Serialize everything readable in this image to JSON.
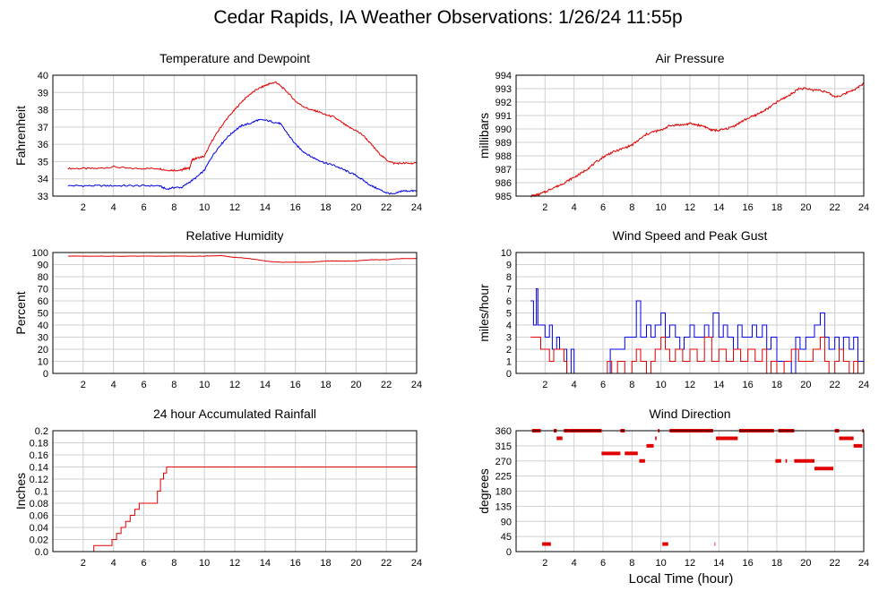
{
  "title": "Cedar Rapids, IA Weather Observations: 1/26/24 11:55p",
  "xlabel": "Local Time (hour)",
  "colors": {
    "red": "#e00000",
    "blue": "#0000e0"
  },
  "chart_data": [
    {
      "id": "temp",
      "type": "line",
      "title": "Temperature and Dewpoint",
      "ylabel": "Fahrenheit",
      "xlim": [
        0,
        24
      ],
      "ylim": [
        33,
        40
      ],
      "xticks": [
        2,
        4,
        6,
        8,
        10,
        12,
        14,
        16,
        18,
        20,
        22,
        24
      ],
      "yticks": [
        33,
        34,
        35,
        36,
        37,
        38,
        39,
        40
      ],
      "grid": true,
      "series": [
        {
          "color": "#e00000",
          "jitter": 0.05,
          "x": [
            1,
            2,
            3,
            4,
            5,
            6,
            7,
            7.5,
            8,
            8.5,
            8.7,
            9,
            9.2,
            9.5,
            10,
            10.5,
            11,
            11.5,
            12,
            12.5,
            13,
            13.5,
            14,
            14.3,
            14.7,
            15,
            15.5,
            16,
            16.5,
            17,
            17.5,
            18,
            18.5,
            19,
            19.5,
            20,
            20.5,
            21,
            21.5,
            22,
            22.5,
            23,
            23.5,
            24
          ],
          "y": [
            34.6,
            34.6,
            34.6,
            34.7,
            34.6,
            34.6,
            34.6,
            34.5,
            34.5,
            34.5,
            34.6,
            34.6,
            35.1,
            35.2,
            35.3,
            36.2,
            36.9,
            37.5,
            38.0,
            38.5,
            38.9,
            39.2,
            39.4,
            39.5,
            39.6,
            39.4,
            39.0,
            38.5,
            38.2,
            38.0,
            37.9,
            37.7,
            37.6,
            37.3,
            37.0,
            36.8,
            36.5,
            36.0,
            35.5,
            35.1,
            34.9,
            34.9,
            34.9,
            34.9
          ]
        },
        {
          "color": "#0000e0",
          "jitter": 0.05,
          "x": [
            1,
            2,
            3,
            4,
            5,
            6,
            7,
            7.5,
            8,
            8.5,
            9,
            9.5,
            10,
            10.5,
            11,
            11.5,
            12,
            12.5,
            13,
            13.5,
            14,
            14.5,
            15,
            15.5,
            16,
            16.5,
            17,
            17.5,
            18,
            18.5,
            19,
            19.5,
            20,
            20.5,
            21,
            21.5,
            22,
            22.5,
            23,
            23.5,
            24
          ],
          "y": [
            33.6,
            33.6,
            33.6,
            33.6,
            33.6,
            33.6,
            33.6,
            33.4,
            33.5,
            33.5,
            33.8,
            34.1,
            34.5,
            35.3,
            35.9,
            36.4,
            36.8,
            37.1,
            37.2,
            37.4,
            37.4,
            37.3,
            37.2,
            36.6,
            36.0,
            35.6,
            35.3,
            35.1,
            34.9,
            34.8,
            34.6,
            34.4,
            34.2,
            33.9,
            33.6,
            33.4,
            33.2,
            33.1,
            33.3,
            33.3,
            33.3
          ]
        }
      ]
    },
    {
      "id": "pressure",
      "type": "line",
      "title": "Air Pressure",
      "ylabel": "millibars",
      "xlim": [
        0,
        24
      ],
      "ylim": [
        985,
        994
      ],
      "xticks": [
        2,
        4,
        6,
        8,
        10,
        12,
        14,
        16,
        18,
        20,
        22,
        24
      ],
      "yticks": [
        985,
        986,
        987,
        988,
        989,
        990,
        991,
        992,
        993,
        994
      ],
      "grid": true,
      "series": [
        {
          "color": "#e00000",
          "jitter": 0.08,
          "x": [
            1,
            1.5,
            2,
            2.5,
            3,
            3.5,
            4,
            4.5,
            5,
            5.5,
            6,
            6.5,
            7,
            7.5,
            8,
            8.5,
            9,
            9.5,
            10,
            10.5,
            11,
            11.5,
            12,
            12.5,
            13,
            13.5,
            14,
            14.5,
            15,
            15.5,
            16,
            16.5,
            17,
            17.5,
            18,
            18.5,
            19,
            19.5,
            20,
            20.5,
            21,
            21.5,
            22,
            22.5,
            23,
            23.5,
            24
          ],
          "y": [
            985.0,
            985.1,
            985.3,
            985.6,
            985.8,
            986.1,
            986.4,
            986.7,
            987.1,
            987.5,
            987.9,
            988.2,
            988.4,
            988.6,
            988.8,
            989.2,
            989.6,
            989.8,
            989.9,
            990.2,
            990.3,
            990.3,
            990.4,
            990.3,
            990.2,
            989.9,
            989.9,
            990.0,
            990.2,
            990.5,
            990.8,
            991.0,
            991.3,
            991.6,
            992.0,
            992.3,
            992.6,
            993.0,
            993.0,
            992.9,
            992.9,
            992.7,
            992.4,
            992.5,
            992.8,
            993.0,
            993.4
          ]
        }
      ]
    },
    {
      "id": "rh",
      "type": "line",
      "title": "Relative Humidity",
      "ylabel": "Percent",
      "xlim": [
        0,
        24
      ],
      "ylim": [
        0,
        100
      ],
      "xticks": [
        2,
        4,
        6,
        8,
        10,
        12,
        14,
        16,
        18,
        20,
        22,
        24
      ],
      "yticks": [
        0,
        10,
        20,
        30,
        40,
        50,
        60,
        70,
        80,
        90,
        100
      ],
      "grid": true,
      "series": [
        {
          "color": "#e00000",
          "jitter": 0.15,
          "x": [
            1,
            3,
            5,
            7,
            9,
            10,
            11,
            12,
            13,
            14,
            15,
            16,
            17,
            18,
            19,
            20,
            21,
            22,
            23,
            24
          ],
          "y": [
            97,
            97,
            97,
            97,
            97,
            97,
            97.5,
            96,
            95,
            93,
            92,
            92,
            92,
            93,
            93,
            93,
            94,
            94,
            95,
            95
          ]
        }
      ]
    },
    {
      "id": "wind",
      "type": "line",
      "title": "Wind Speed and Peak Gust",
      "ylabel": "miles/hour",
      "xlim": [
        0,
        24
      ],
      "ylim": [
        0,
        10
      ],
      "xticks": [
        2,
        4,
        6,
        8,
        10,
        12,
        14,
        16,
        18,
        20,
        22,
        24
      ],
      "yticks": [
        0,
        1,
        2,
        3,
        4,
        5,
        6,
        7,
        8,
        9,
        10
      ],
      "grid": true,
      "series": [
        {
          "color": "#0000e0",
          "step": true,
          "x": [
            1,
            1.2,
            1.4,
            1.5,
            1.7,
            2,
            2.3,
            2.5,
            2.8,
            3,
            3.3,
            3.5,
            3.8,
            4,
            4.5,
            5,
            5.5,
            6,
            6.5,
            7,
            7.5,
            8,
            8.3,
            8.6,
            9,
            9.3,
            9.6,
            10,
            10.3,
            10.6,
            11,
            11.3,
            11.6,
            12,
            12.3,
            12.6,
            13,
            13.3,
            13.6,
            14,
            14.3,
            14.6,
            15,
            15.3,
            15.6,
            16,
            16.3,
            16.6,
            17,
            17.3,
            17.6,
            18,
            18.5,
            19,
            19.3,
            19.6,
            20,
            20.3,
            20.6,
            21,
            21.3,
            21.6,
            22,
            22.3,
            22.6,
            23,
            23.3,
            23.6,
            24
          ],
          "y": [
            6,
            4,
            7,
            4,
            4,
            3,
            4,
            2,
            3,
            2,
            2,
            0,
            2,
            0,
            0,
            0,
            0,
            0,
            2,
            2,
            3,
            3,
            6,
            3,
            4,
            3,
            4,
            5,
            3,
            4,
            3,
            2,
            3,
            4,
            3,
            3,
            4,
            3,
            5,
            3,
            4,
            3,
            2,
            4,
            3,
            3,
            4,
            3,
            4,
            2,
            3,
            1,
            1,
            0,
            3,
            2,
            3,
            3,
            4,
            5,
            3,
            2,
            3,
            2,
            3,
            2,
            3,
            1,
            2
          ]
        },
        {
          "color": "#e00000",
          "step": true,
          "x": [
            1,
            1.5,
            1.7,
            2,
            2.3,
            2.6,
            3,
            3.3,
            3.5,
            4,
            4.5,
            5,
            5.5,
            6,
            6.3,
            6.6,
            7,
            7.5,
            8,
            8.3,
            8.6,
            9,
            9.3,
            9.6,
            10,
            10.3,
            10.6,
            11,
            11.5,
            12,
            12.5,
            13,
            13.5,
            14,
            14.5,
            15,
            15.5,
            16,
            16.5,
            17,
            17.3,
            17.6,
            18,
            18.5,
            19,
            19.5,
            20,
            20.5,
            21,
            21.3,
            21.6,
            22,
            22.3,
            22.6,
            23,
            23.3,
            23.6,
            24
          ],
          "y": [
            3,
            3,
            2,
            2,
            1,
            2,
            2,
            1,
            0,
            0,
            0,
            0,
            0,
            0,
            1,
            0,
            1,
            0,
            1,
            2,
            1,
            0,
            1,
            2,
            3,
            2,
            1,
            2,
            1,
            2,
            1,
            3,
            1,
            2,
            1,
            2,
            1,
            2,
            1,
            2,
            0,
            1,
            0,
            1,
            2,
            1,
            1,
            2,
            3,
            1,
            0,
            1,
            2,
            1,
            0,
            1,
            0,
            1
          ]
        }
      ]
    },
    {
      "id": "rain",
      "type": "line",
      "title": "24 hour Accumulated Rainfall",
      "ylabel": "Inches",
      "xlim": [
        0,
        24
      ],
      "ylim": [
        0,
        0.2
      ],
      "xticks": [
        2,
        4,
        6,
        8,
        10,
        12,
        14,
        16,
        18,
        20,
        22,
        24
      ],
      "yticks": [
        0,
        0.02,
        0.04,
        0.06,
        0.08,
        0.1,
        0.12,
        0.14,
        0.16,
        0.18,
        0.2
      ],
      "ydecimals": 2,
      "grid": true,
      "series": [
        {
          "color": "#e00000",
          "step": true,
          "x": [
            1,
            2.7,
            3.9,
            4.2,
            4.5,
            4.8,
            5.1,
            5.4,
            5.7,
            5.9,
            6.9,
            7.1,
            7.3,
            7.5,
            7.7,
            24
          ],
          "y": [
            0,
            0.01,
            0.02,
            0.03,
            0.04,
            0.05,
            0.06,
            0.07,
            0.08,
            0.08,
            0.1,
            0.12,
            0.13,
            0.14,
            0.14,
            0.14
          ]
        }
      ]
    },
    {
      "id": "winddir",
      "type": "scatter",
      "title": "Wind Direction",
      "ylabel": "degrees",
      "xlim": [
        0,
        24
      ],
      "ylim": [
        0,
        360
      ],
      "xticks": [
        2,
        4,
        6,
        8,
        10,
        12,
        14,
        16,
        18,
        20,
        22,
        24
      ],
      "yticks": [
        0,
        45,
        90,
        135,
        180,
        225,
        270,
        315,
        360
      ],
      "grid": true,
      "segments": [
        {
          "y": 360,
          "x0": 1.1,
          "x1": 1.7
        },
        {
          "y": 22.5,
          "x0": 1.8,
          "x1": 2.4
        },
        {
          "y": 360,
          "x0": 2.6,
          "x1": 2.8
        },
        {
          "y": 337.5,
          "x0": 2.8,
          "x1": 3.2
        },
        {
          "y": 360,
          "x0": 3.3,
          "x1": 5.9
        },
        {
          "y": 292.5,
          "x0": 5.9,
          "x1": 7.2
        },
        {
          "y": 360,
          "x0": 7.2,
          "x1": 7.5
        },
        {
          "y": 292.5,
          "x0": 7.5,
          "x1": 8.4
        },
        {
          "y": 270,
          "x0": 8.5,
          "x1": 8.9
        },
        {
          "y": 315,
          "x0": 9.0,
          "x1": 9.5
        },
        {
          "y": 337.5,
          "x0": 9.6,
          "x1": 9.7
        },
        {
          "y": 360,
          "x0": 9.8,
          "x1": 9.9
        },
        {
          "y": 22.5,
          "x0": 10.1,
          "x1": 10.5
        },
        {
          "y": 360,
          "x0": 10.6,
          "x1": 13.6
        },
        {
          "y": 22.5,
          "x0": 13.7,
          "x1": 13.75
        },
        {
          "y": 337.5,
          "x0": 13.8,
          "x1": 15.3
        },
        {
          "y": 360,
          "x0": 15.4,
          "x1": 17.8
        },
        {
          "y": 270,
          "x0": 17.9,
          "x1": 18.3
        },
        {
          "y": 360,
          "x0": 18.1,
          "x1": 19.2
        },
        {
          "y": 270,
          "x0": 18.6,
          "x1": 18.7
        },
        {
          "y": 270,
          "x0": 19.2,
          "x1": 20.6
        },
        {
          "y": 247.5,
          "x0": 20.6,
          "x1": 21.9
        },
        {
          "y": 360,
          "x0": 22.0,
          "x1": 22.3
        },
        {
          "y": 337.5,
          "x0": 22.3,
          "x1": 23.3
        },
        {
          "y": 315,
          "x0": 23.3,
          "x1": 23.9
        },
        {
          "y": 360,
          "x0": 23.9,
          "x1": 24
        }
      ]
    }
  ]
}
